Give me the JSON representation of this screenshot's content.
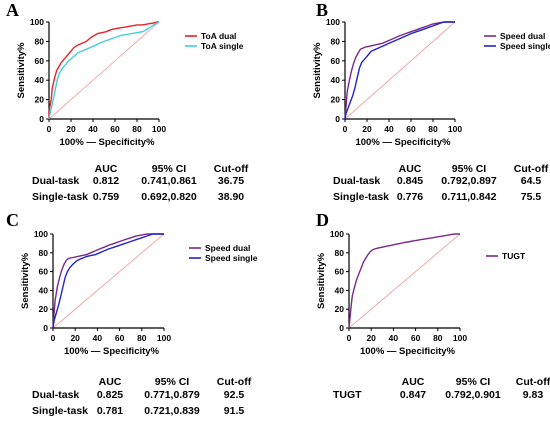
{
  "chart_data": [
    {
      "panel": "A",
      "type": "line",
      "xlabel": "100% — Specificity%",
      "ylabel": "Sensitivity%",
      "xlim": [
        0,
        100
      ],
      "ylim": [
        0,
        100
      ],
      "xticks": [
        0,
        20,
        40,
        60,
        80,
        100
      ],
      "yticks": [
        0,
        20,
        40,
        60,
        80,
        100
      ],
      "legend_position": "right",
      "series": [
        {
          "name": "ToA dual",
          "color": "#e8232a",
          "x": [
            0,
            0,
            2,
            3,
            5,
            7,
            9,
            11,
            14,
            17,
            20,
            23,
            26,
            30,
            34,
            38,
            41,
            44,
            48,
            52,
            56,
            60,
            65,
            70,
            75,
            80,
            85,
            90,
            95,
            98,
            100
          ],
          "y": [
            0,
            8,
            20,
            32,
            42,
            50,
            54,
            58,
            62,
            66,
            70,
            74,
            76,
            78,
            80,
            84,
            86,
            88,
            89,
            90,
            92,
            93,
            94,
            95,
            96,
            97,
            97,
            98,
            99,
            100,
            100
          ]
        },
        {
          "name": "ToA single",
          "color": "#3fd0dc",
          "x": [
            0,
            1,
            3,
            5,
            7,
            9,
            12,
            15,
            18,
            22,
            26,
            30,
            34,
            38,
            42,
            46,
            50,
            55,
            60,
            65,
            70,
            75,
            80,
            85,
            90,
            95,
            100
          ],
          "y": [
            0,
            6,
            16,
            26,
            38,
            46,
            52,
            56,
            60,
            64,
            68,
            70,
            72,
            74,
            76,
            78,
            80,
            82,
            84,
            86,
            87,
            88,
            89,
            90,
            93,
            97,
            100
          ]
        }
      ],
      "reference_line": {
        "x": [
          0,
          100
        ],
        "y": [
          0,
          100
        ],
        "color": "#f2a3a3"
      },
      "table": {
        "columns": [
          "AUC",
          "95% CI",
          "Cut-off"
        ],
        "rows": [
          {
            "label": "Dual-task",
            "auc": "0.812",
            "ci": "0.741,0.861",
            "cutoff": "36.75"
          },
          {
            "label": "Single-task",
            "auc": "0.759",
            "ci": "0.692,0.820",
            "cutoff": "38.90"
          }
        ]
      }
    },
    {
      "panel": "B",
      "type": "line",
      "xlabel": "100% — Specificity%",
      "ylabel": "Sensitivity%",
      "xlim": [
        0,
        100
      ],
      "ylim": [
        0,
        100
      ],
      "xticks": [
        0,
        20,
        40,
        60,
        80,
        100
      ],
      "yticks": [
        0,
        20,
        40,
        60,
        80,
        100
      ],
      "legend_position": "right",
      "series": [
        {
          "name": "Speed dual",
          "color": "#7a2a8a",
          "x": [
            0,
            1,
            2,
            4,
            6,
            8,
            10,
            12,
            14,
            18,
            22,
            26,
            30,
            34,
            38,
            42,
            46,
            50,
            55,
            60,
            65,
            70,
            75,
            80,
            85,
            90,
            95,
            100
          ],
          "y": [
            0,
            14,
            28,
            40,
            50,
            58,
            64,
            68,
            72,
            74,
            75,
            76,
            77,
            78,
            80,
            82,
            84,
            86,
            88,
            90,
            92,
            94,
            96,
            98,
            99,
            100,
            100,
            100
          ]
        },
        {
          "name": "Speed single",
          "color": "#2424c8",
          "x": [
            0,
            1,
            3,
            5,
            7,
            9,
            11,
            13,
            15,
            18,
            21,
            24,
            28,
            32,
            36,
            40,
            44,
            48,
            52,
            56,
            60,
            65,
            70,
            75,
            80,
            85,
            90,
            95,
            100
          ],
          "y": [
            0,
            6,
            12,
            18,
            24,
            32,
            42,
            52,
            58,
            62,
            66,
            70,
            72,
            74,
            76,
            78,
            80,
            82,
            84,
            86,
            88,
            90,
            92,
            94,
            96,
            98,
            100,
            100,
            100
          ]
        }
      ],
      "reference_line": {
        "x": [
          0,
          100
        ],
        "y": [
          0,
          100
        ],
        "color": "#f2a3a3"
      },
      "table": {
        "columns": [
          "AUC",
          "95% CI",
          "Cut-off"
        ],
        "rows": [
          {
            "label": "Dual-task",
            "auc": "0.845",
            "ci": "0.792,0.897",
            "cutoff": "64.5"
          },
          {
            "label": "Single-task",
            "auc": "0.776",
            "ci": "0.711,0.842",
            "cutoff": "75.5"
          }
        ]
      }
    },
    {
      "panel": "C",
      "type": "line",
      "xlabel": "100% — Specificity%",
      "ylabel": "Sensitivity%",
      "xlim": [
        0,
        100
      ],
      "ylim": [
        0,
        100
      ],
      "xticks": [
        0,
        20,
        40,
        60,
        80,
        100
      ],
      "yticks": [
        0,
        20,
        40,
        60,
        80,
        100
      ],
      "legend_position": "right",
      "series": [
        {
          "name": "Speed dual",
          "color": "#7a2a8a",
          "x": [
            0,
            1,
            2,
            4,
            6,
            8,
            10,
            12,
            14,
            18,
            22,
            26,
            30,
            34,
            38,
            42,
            46,
            50,
            55,
            60,
            65,
            70,
            75,
            80,
            85,
            90,
            95,
            100
          ],
          "y": [
            0,
            16,
            30,
            44,
            54,
            62,
            68,
            72,
            74,
            75,
            76,
            77,
            78,
            80,
            82,
            84,
            86,
            88,
            90,
            92,
            94,
            96,
            98,
            99,
            100,
            100,
            100,
            100
          ]
        },
        {
          "name": "Speed single",
          "color": "#2424c8",
          "x": [
            0,
            1,
            3,
            5,
            7,
            9,
            11,
            13,
            15,
            18,
            22,
            26,
            30,
            34,
            38,
            42,
            46,
            50,
            55,
            60,
            65,
            70,
            75,
            80,
            85,
            90,
            95,
            100
          ],
          "y": [
            0,
            8,
            16,
            24,
            34,
            44,
            54,
            60,
            64,
            68,
            72,
            74,
            76,
            77,
            78,
            80,
            82,
            84,
            86,
            88,
            90,
            92,
            94,
            96,
            98,
            100,
            100,
            100
          ]
        }
      ],
      "reference_line": {
        "x": [
          0,
          100
        ],
        "y": [
          0,
          100
        ],
        "color": "#f2a3a3"
      },
      "table": {
        "columns": [
          "AUC",
          "95% CI",
          "Cut-off"
        ],
        "rows": [
          {
            "label": "Dual-task",
            "auc": "0.825",
            "ci": "0.771,0.879",
            "cutoff": "92.5"
          },
          {
            "label": "Single-task",
            "auc": "0.781",
            "ci": "0.721,0.839",
            "cutoff": "91.5"
          }
        ]
      }
    },
    {
      "panel": "D",
      "type": "line",
      "xlabel": "100% — Specificity%",
      "ylabel": "Sensitivity%",
      "xlim": [
        0,
        100
      ],
      "ylim": [
        0,
        100
      ],
      "xticks": [
        0,
        20,
        40,
        60,
        80,
        100
      ],
      "yticks": [
        0,
        20,
        40,
        60,
        80,
        100
      ],
      "legend_position": "right",
      "series": [
        {
          "name": "TUGT",
          "color": "#7a2a8a",
          "x": [
            0,
            1,
            2,
            3,
            5,
            7,
            9,
            11,
            13,
            15,
            17,
            19,
            21,
            23,
            26,
            30,
            34,
            38,
            42,
            46,
            50,
            55,
            60,
            65,
            70,
            75,
            80,
            85,
            90,
            95,
            100
          ],
          "y": [
            0,
            12,
            24,
            34,
            44,
            52,
            58,
            64,
            70,
            74,
            78,
            81,
            83,
            84,
            85,
            86,
            87,
            88,
            89,
            90,
            91,
            92,
            93,
            94,
            95,
            96,
            97,
            98,
            99,
            100,
            100
          ]
        }
      ],
      "reference_line": {
        "x": [
          0,
          100
        ],
        "y": [
          0,
          100
        ],
        "color": "#f2a3a3"
      },
      "table": {
        "columns": [
          "AUC",
          "95% CI",
          "Cut-off"
        ],
        "rows": [
          {
            "label": "TUGT",
            "auc": "0.847",
            "ci": "0.792,0.901",
            "cutoff": "9.83"
          }
        ]
      }
    }
  ]
}
